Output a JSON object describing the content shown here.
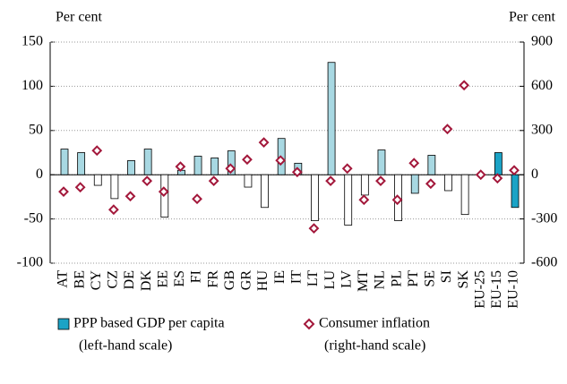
{
  "chart_data": {
    "type": "bar",
    "y_label": "Per cent",
    "y2_label": "Per cent",
    "categories": [
      "AT",
      "BE",
      "CY",
      "CZ",
      "DE",
      "DK",
      "EE",
      "ES",
      "FI",
      "FR",
      "GB",
      "GR",
      "HU",
      "IE",
      "IT",
      "LT",
      "LU",
      "LV",
      "MT",
      "NL",
      "PL",
      "PT",
      "SE",
      "SI",
      "SK",
      "EU-25",
      "EU-15",
      "EU-10"
    ],
    "series": [
      {
        "name": "PPP based GDP per capita",
        "scale_note": "(left-hand scale)",
        "type": "bar",
        "axis": "y",
        "color": "#1ba3c6",
        "colors": [
          "#a8d8e2",
          "#a8d8e2",
          "#ffffff",
          "#ffffff",
          "#a8d8e2",
          "#a8d8e2",
          "#ffffff",
          "#a8d8e2",
          "#a8d8e2",
          "#a8d8e2",
          "#a8d8e2",
          "#ffffff",
          "#ffffff",
          "#a8d8e2",
          "#a8d8e2",
          "#ffffff",
          "#a8d8e2",
          "#ffffff",
          "#ffffff",
          "#a8d8e2",
          "#ffffff",
          "#a8d8e2",
          "#a8d8e2",
          "#ffffff",
          "#ffffff",
          "#1ba3c6",
          "#1ba3c6",
          "#1ba3c6"
        ],
        "values": [
          29,
          25,
          -12,
          -27,
          16,
          29,
          -48,
          5,
          21,
          19,
          27,
          -14,
          -37,
          41,
          13,
          -52,
          127,
          -57,
          -23,
          28,
          -52,
          -21,
          22,
          -18,
          -45,
          0,
          25,
          -37
        ]
      },
      {
        "name": "Consumer inflation",
        "scale_note": "(right-hand scale)",
        "type": "scatter",
        "axis": "y2",
        "color": "#a3183b",
        "values": [
          -115,
          -85,
          164,
          -237,
          -146,
          -42,
          -115,
          55,
          -164,
          -42,
          42,
          103,
          219,
          97,
          18,
          -364,
          -42,
          42,
          -170,
          -42,
          -170,
          79,
          -61,
          310,
          607,
          0,
          -24,
          30
        ]
      }
    ],
    "ylim": [
      -100,
      150
    ],
    "yticks": [
      -100,
      -50,
      0,
      50,
      100,
      150
    ],
    "y2lim": [
      -600,
      900
    ],
    "y2ticks": [
      -600,
      -300,
      0,
      300,
      600,
      900
    ],
    "grid": true
  }
}
